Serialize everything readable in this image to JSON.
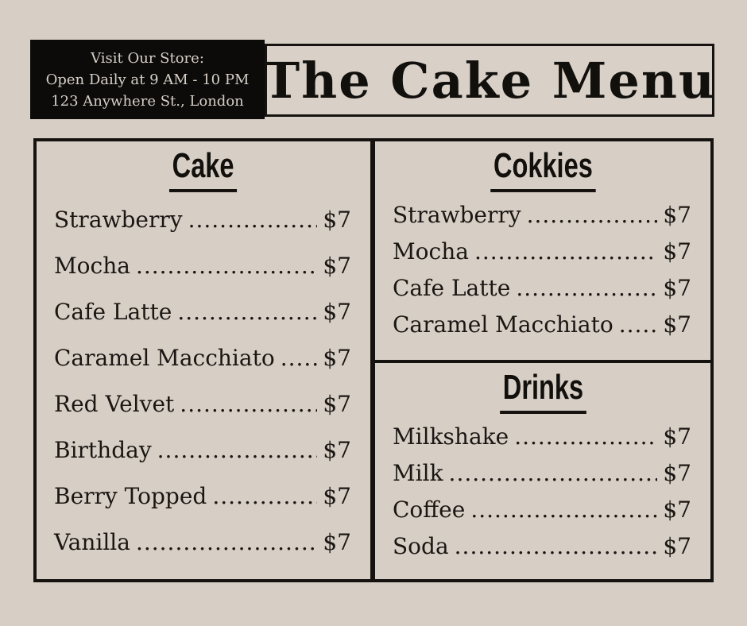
{
  "colors": {
    "background": "#d7cfc6",
    "ink": "#1b1613",
    "header_box_bg": "#0c0b0a",
    "header_box_text": "#d7cfc6",
    "border": "#15120f"
  },
  "header": {
    "store_info": {
      "lines": [
        "Visit Our Store:",
        "Open Daily at 9 AM - 10 PM",
        "123 Anywhere St., London"
      ]
    },
    "title": "The Cake Menu"
  },
  "menu": {
    "leader_dots": "....................................................................................................",
    "sections": [
      {
        "heading": "Cake",
        "items": [
          {
            "name": "Strawberry",
            "price": "$7"
          },
          {
            "name": "Mocha",
            "price": "$7"
          },
          {
            "name": "Cafe Latte",
            "price": "$7"
          },
          {
            "name": "Caramel Macchiato",
            "price": "$7"
          },
          {
            "name": "Red Velvet",
            "price": "$7"
          },
          {
            "name": "Birthday",
            "price": "$7"
          },
          {
            "name": "Berry Topped",
            "price": "$7"
          },
          {
            "name": "Vanilla",
            "price": "$7"
          }
        ]
      },
      {
        "heading": "Cokkies",
        "items": [
          {
            "name": "Strawberry",
            "price": "$7"
          },
          {
            "name": "Mocha",
            "price": "$7"
          },
          {
            "name": "Cafe Latte",
            "price": "$7"
          },
          {
            "name": "Caramel Macchiato",
            "price": "$7"
          }
        ]
      },
      {
        "heading": "Drinks",
        "items": [
          {
            "name": "Milkshake",
            "price": "$7"
          },
          {
            "name": "Milk",
            "price": "$7"
          },
          {
            "name": "Coffee",
            "price": "$7"
          },
          {
            "name": "Soda",
            "price": "$7"
          }
        ]
      }
    ]
  }
}
